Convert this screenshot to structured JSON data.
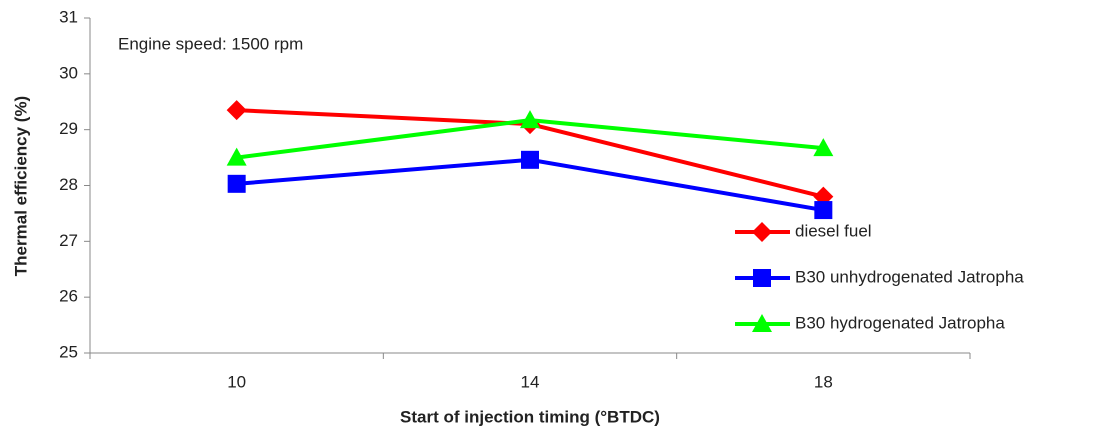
{
  "chart_data": {
    "type": "line",
    "annotation": "Engine speed: 1500 rpm",
    "x_label": "Start of injection timing (°BTDC)",
    "y_label": "Thermal efficiency (%)",
    "categories": [
      "10",
      "14",
      "18"
    ],
    "series": [
      {
        "name": "diesel fuel",
        "color": "#ff0000",
        "marker": "diamond",
        "values": [
          29.35,
          29.1,
          27.8
        ]
      },
      {
        "name": "B30 unhydrogenated Jatropha",
        "color": "#0000ff",
        "marker": "square",
        "values": [
          28.03,
          28.46,
          27.56
        ]
      },
      {
        "name": "B30 hydrogenated Jatropha",
        "color": "#00ff00",
        "marker": "triangle",
        "values": [
          28.5,
          29.17,
          28.67
        ]
      }
    ],
    "ylim": [
      25,
      31
    ],
    "yticks": [
      25,
      26,
      27,
      28,
      29,
      30,
      31
    ],
    "grid": false,
    "legend": "right"
  }
}
